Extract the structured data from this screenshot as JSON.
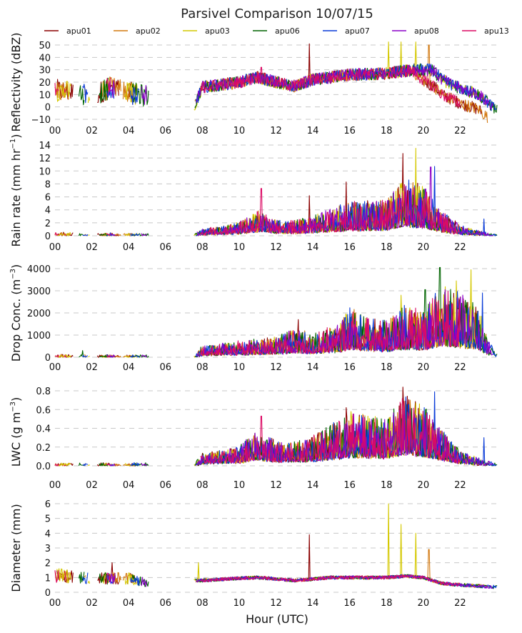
{
  "chart_data": {
    "type": "line",
    "title": "Parsivel Comparison 10/07/15",
    "xlabel": "Hour (UTC)",
    "x_range": [
      0,
      24
    ],
    "x_ticks": [
      0,
      2,
      4,
      6,
      8,
      10,
      12,
      14,
      16,
      18,
      20,
      22
    ],
    "x_tick_labels": [
      "00",
      "02",
      "04",
      "06",
      "08",
      "10",
      "12",
      "14",
      "16",
      "18",
      "20",
      "22"
    ],
    "legend": {
      "placement": "top",
      "entries": [
        {
          "name": "apu01",
          "color": "#8b0000"
        },
        {
          "name": "apu02",
          "color": "#d2780f"
        },
        {
          "name": "apu03",
          "color": "#d4c800"
        },
        {
          "name": "apu06",
          "color": "#006400"
        },
        {
          "name": "apu07",
          "color": "#0a3cd8"
        },
        {
          "name": "apu08",
          "color": "#8c00c8"
        },
        {
          "name": "apu13",
          "color": "#dc0a64"
        }
      ]
    },
    "grid": true,
    "data_gap_hours": [
      5.1,
      7.5
    ],
    "panels": [
      {
        "id": "reflectivity",
        "ylabel": "Reflectivity (dBZ)",
        "ylabel_sup": "",
        "ylim": [
          -10,
          50
        ],
        "yticks": [
          -10,
          0,
          10,
          20,
          30,
          40,
          50
        ],
        "ytick_labels": [
          "−10",
          "0",
          "10",
          "20",
          "30",
          "40",
          "50"
        ],
        "baseline_profile": [
          [
            0,
            10
          ],
          [
            1,
            8
          ],
          [
            2,
            5
          ],
          [
            3,
            12
          ],
          [
            4,
            8
          ],
          [
            5,
            5
          ],
          [
            7.6,
            2
          ],
          [
            8,
            16
          ],
          [
            10,
            20
          ],
          [
            11,
            24
          ],
          [
            12,
            20
          ],
          [
            13,
            17
          ],
          [
            14,
            22
          ],
          [
            16,
            26
          ],
          [
            18,
            27
          ],
          [
            19.5,
            30
          ],
          [
            20.5,
            30
          ],
          [
            21,
            22
          ],
          [
            22,
            15
          ],
          [
            23,
            10
          ],
          [
            24,
            -3
          ]
        ],
        "noise": 5,
        "peaks": [
          {
            "series": "apu01",
            "hour": 13.8,
            "value": 51
          },
          {
            "series": "apu03",
            "hour": 18.1,
            "value": 54
          },
          {
            "series": "apu03",
            "hour": 18.8,
            "value": 54
          },
          {
            "series": "apu03",
            "hour": 19.6,
            "value": 54
          },
          {
            "series": "apu02",
            "hour": 20.3,
            "value": 50
          },
          {
            "series": "apu13",
            "hour": 11.2,
            "value": 32
          }
        ]
      },
      {
        "id": "rain-rate",
        "ylabel": "Rain rate (mm hr",
        "ylabel_sup": "−1",
        "ylabel_suffix": ")",
        "ylim": [
          0,
          14
        ],
        "yticks": [
          0,
          2,
          4,
          6,
          8,
          10,
          12,
          14
        ],
        "ytick_labels": [
          "0",
          "2",
          "4",
          "6",
          "8",
          "10",
          "12",
          "14"
        ],
        "baseline_profile": [
          [
            0,
            0.2
          ],
          [
            5,
            0.1
          ],
          [
            7.6,
            0.1
          ],
          [
            8,
            0.4
          ],
          [
            10,
            0.8
          ],
          [
            11,
            1.5
          ],
          [
            12,
            1.0
          ],
          [
            13,
            0.9
          ],
          [
            14,
            1.2
          ],
          [
            16,
            2.0
          ],
          [
            18,
            2.2
          ],
          [
            19,
            3.5
          ],
          [
            20,
            3.0
          ],
          [
            21,
            1.5
          ],
          [
            22,
            0.6
          ],
          [
            23,
            0.3
          ],
          [
            24,
            0.05
          ]
        ],
        "noise": 0.9,
        "peaks": [
          {
            "series": "apu13",
            "hour": 11.2,
            "value": 7.3
          },
          {
            "series": "apu01",
            "hour": 13.8,
            "value": 6.2
          },
          {
            "series": "apu01",
            "hour": 15.8,
            "value": 8.3
          },
          {
            "series": "apu03",
            "hour": 18.1,
            "value": 5.2
          },
          {
            "series": "apu01",
            "hour": 18.9,
            "value": 12.7
          },
          {
            "series": "apu03",
            "hour": 19.6,
            "value": 13.5
          },
          {
            "series": "apu07",
            "hour": 20.6,
            "value": 10.7
          },
          {
            "series": "apu08",
            "hour": 20.4,
            "value": 10.6
          },
          {
            "series": "apu07",
            "hour": 23.3,
            "value": 2.6
          }
        ]
      },
      {
        "id": "drop-conc",
        "ylabel": "Drop Conc. (m",
        "ylabel_sup": "−3",
        "ylabel_suffix": ")",
        "ylim": [
          0,
          4000
        ],
        "yticks": [
          0,
          1000,
          2000,
          3000,
          4000
        ],
        "ytick_labels": [
          "0",
          "1000",
          "2000",
          "3000",
          "4000"
        ],
        "baseline_profile": [
          [
            0,
            40
          ],
          [
            5,
            30
          ],
          [
            7.6,
            20
          ],
          [
            8,
            200
          ],
          [
            10,
            280
          ],
          [
            12,
            350
          ],
          [
            13,
            500
          ],
          [
            14,
            400
          ],
          [
            15.5,
            600
          ],
          [
            16,
            900
          ],
          [
            17,
            700
          ],
          [
            18,
            650
          ],
          [
            19,
            900
          ],
          [
            20,
            800
          ],
          [
            21,
            1300
          ],
          [
            22,
            1100
          ],
          [
            23,
            900
          ],
          [
            23.5,
            300
          ],
          [
            24,
            100
          ]
        ],
        "noise": 250,
        "peaks": [
          {
            "series": "apu01",
            "hour": 13.2,
            "value": 1700
          },
          {
            "series": "apu03",
            "hour": 15.9,
            "value": 1750
          },
          {
            "series": "apu03",
            "hour": 18.8,
            "value": 2800
          },
          {
            "series": "apu06",
            "hour": 20.1,
            "value": 3050
          },
          {
            "series": "apu06",
            "hour": 20.9,
            "value": 4050
          },
          {
            "series": "apu03",
            "hour": 21.8,
            "value": 3450
          },
          {
            "series": "apu03",
            "hour": 22.6,
            "value": 3950
          },
          {
            "series": "apu07",
            "hour": 23.2,
            "value": 2900
          },
          {
            "series": "apu06",
            "hour": 1.5,
            "value": 300
          }
        ]
      },
      {
        "id": "lwc",
        "ylabel": "LWC (g m",
        "ylabel_sup": "−3",
        "ylabel_suffix": ")",
        "ylim": [
          0,
          0.8
        ],
        "yticks": [
          0.0,
          0.2,
          0.4,
          0.6,
          0.8
        ],
        "ytick_labels": [
          "0.0",
          "0.2",
          "0.4",
          "0.6",
          "0.8"
        ],
        "baseline_profile": [
          [
            0,
            0.01
          ],
          [
            5,
            0.01
          ],
          [
            7.6,
            0.01
          ],
          [
            8,
            0.05
          ],
          [
            10,
            0.08
          ],
          [
            11,
            0.15
          ],
          [
            12,
            0.1
          ],
          [
            13,
            0.1
          ],
          [
            14,
            0.12
          ],
          [
            16,
            0.22
          ],
          [
            18,
            0.2
          ],
          [
            19,
            0.3
          ],
          [
            20,
            0.25
          ],
          [
            21,
            0.15
          ],
          [
            22,
            0.06
          ],
          [
            23,
            0.03
          ],
          [
            24,
            0.01
          ]
        ],
        "noise": 0.07,
        "peaks": [
          {
            "series": "apu13",
            "hour": 11.2,
            "value": 0.53
          },
          {
            "series": "apu01",
            "hour": 15.8,
            "value": 0.62
          },
          {
            "series": "apu01",
            "hour": 18.9,
            "value": 0.86
          },
          {
            "series": "apu03",
            "hour": 19.6,
            "value": 0.67
          },
          {
            "series": "apu07",
            "hour": 20.6,
            "value": 0.79
          },
          {
            "series": "apu07",
            "hour": 23.3,
            "value": 0.3
          }
        ]
      },
      {
        "id": "diameter",
        "ylabel": "Diameter (mm)",
        "ylabel_sup": "",
        "ylim": [
          0,
          6.5
        ],
        "yticks": [
          0,
          1,
          2,
          3,
          4,
          5,
          6
        ],
        "ytick_labels": [
          "0",
          "1",
          "2",
          "3",
          "4",
          "5",
          "6"
        ],
        "baseline_profile": [
          [
            0,
            1.1
          ],
          [
            2,
            0.9
          ],
          [
            4,
            0.9
          ],
          [
            5,
            0.6
          ],
          [
            7.6,
            0.8
          ],
          [
            8,
            0.8
          ],
          [
            10,
            0.95
          ],
          [
            11,
            1.0
          ],
          [
            13,
            0.8
          ],
          [
            15,
            1.0
          ],
          [
            18,
            1.0
          ],
          [
            19,
            1.1
          ],
          [
            20,
            1.0
          ],
          [
            21,
            0.6
          ],
          [
            22,
            0.5
          ],
          [
            24,
            0.35
          ]
        ],
        "noise": 0.12,
        "peaks": [
          {
            "series": "apu03",
            "hour": 7.8,
            "value": 2.0
          },
          {
            "series": "apu01",
            "hour": 13.8,
            "value": 3.9
          },
          {
            "series": "apu03",
            "hour": 18.1,
            "value": 6.0
          },
          {
            "series": "apu03",
            "hour": 18.8,
            "value": 4.6
          },
          {
            "series": "apu03",
            "hour": 19.6,
            "value": 4.0
          },
          {
            "series": "apu02",
            "hour": 20.3,
            "value": 2.9
          },
          {
            "series": "apu01",
            "hour": 3.1,
            "value": 2.0
          }
        ]
      }
    ]
  }
}
